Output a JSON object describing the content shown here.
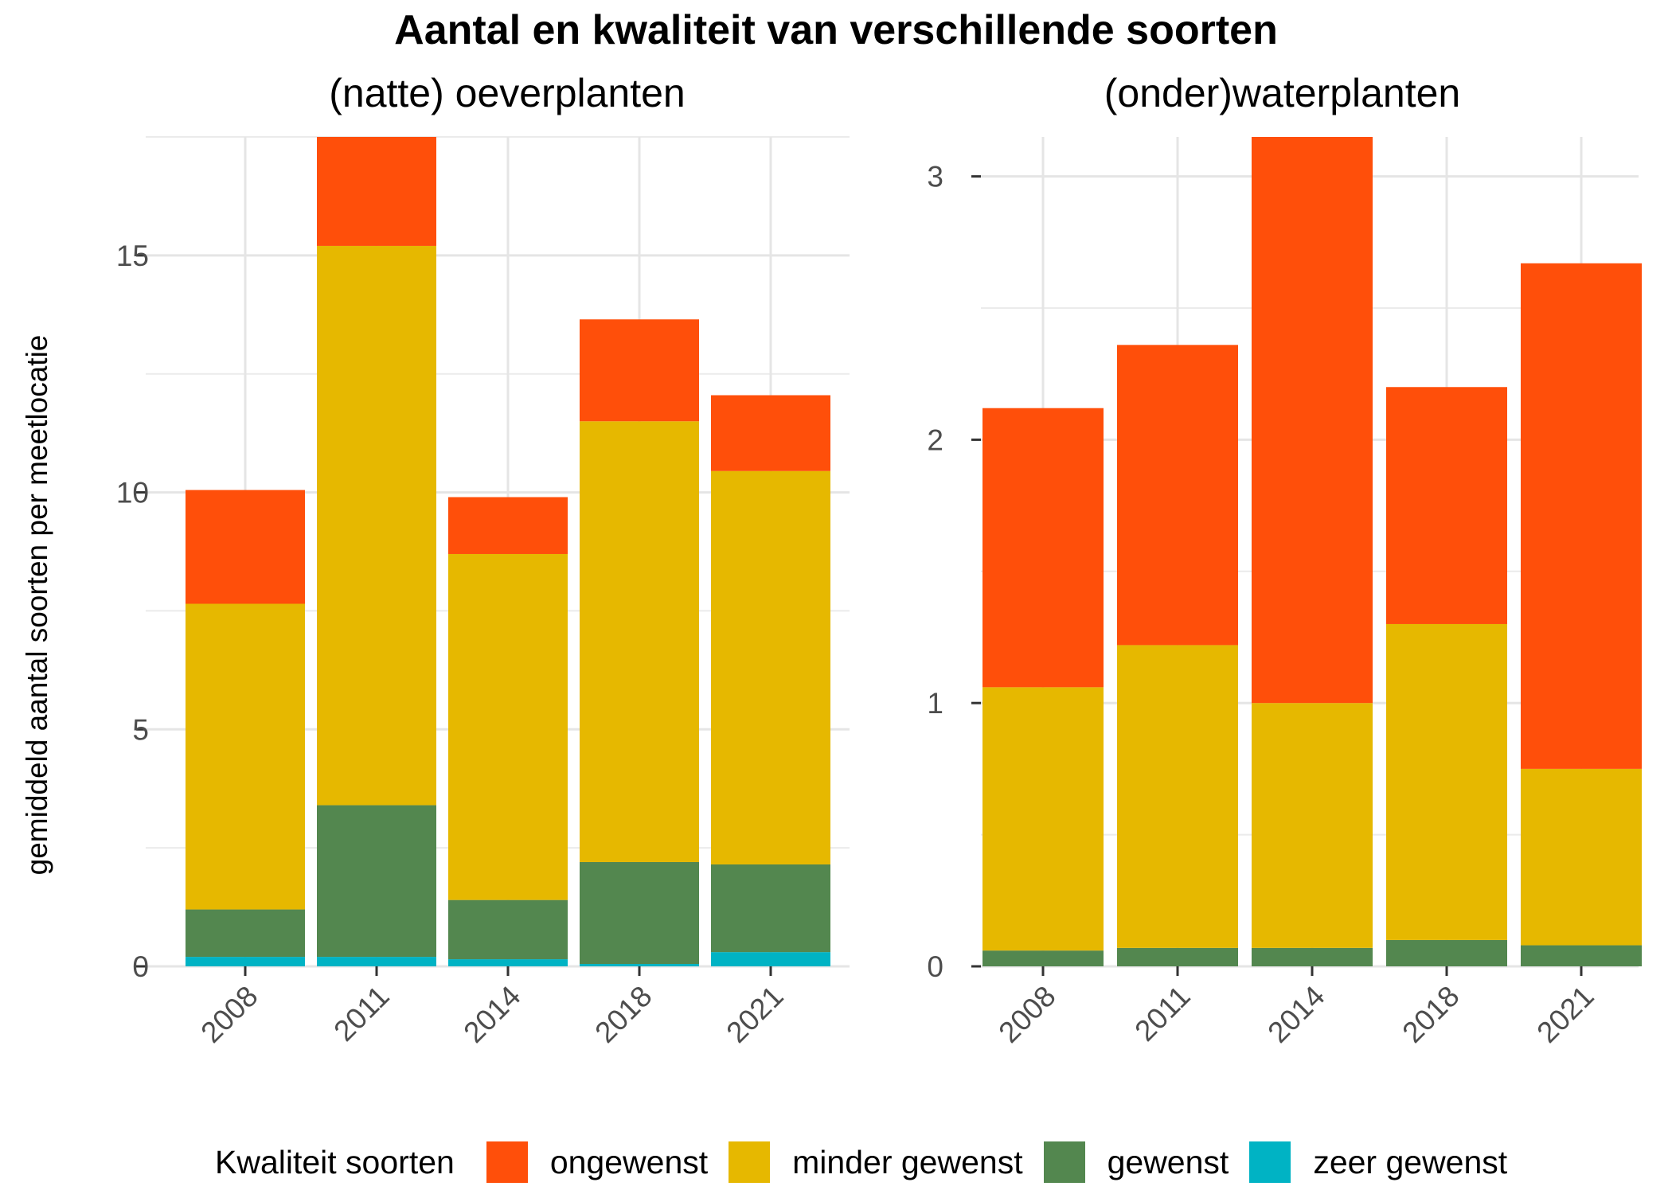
{
  "title": "Aantal en kwaliteit van verschillende soorten",
  "ylabel": "gemiddeld aantal soorten per meetlocatie",
  "legend": {
    "title": "Kwaliteit soorten",
    "items": [
      {
        "label": "ongewenst",
        "color": "#FF4F0A"
      },
      {
        "label": "minder gewenst",
        "color": "#E6B800"
      },
      {
        "label": "gewenst",
        "color": "#53874F"
      },
      {
        "label": "zeer gewenst",
        "color": "#00B3C4"
      }
    ]
  },
  "chart_data": [
    {
      "type": "bar",
      "stacked": true,
      "title": "(natte) oeverplanten",
      "categories": [
        "2008",
        "2011",
        "2014",
        "2018",
        "2021"
      ],
      "ylim": [
        0,
        17.5
      ],
      "yticks": [
        "0",
        "5",
        "10",
        "15"
      ],
      "grid": true,
      "series": [
        {
          "name": "zeer gewenst",
          "values": [
            0.2,
            0.2,
            0.15,
            0.05,
            0.3
          ]
        },
        {
          "name": "gewenst",
          "values": [
            1.0,
            3.2,
            1.25,
            2.15,
            1.85
          ]
        },
        {
          "name": "minder gewenst",
          "values": [
            6.45,
            11.8,
            7.3,
            9.3,
            8.3
          ]
        },
        {
          "name": "ongewenst",
          "values": [
            2.4,
            2.3,
            1.2,
            2.15,
            1.6
          ]
        }
      ]
    },
    {
      "type": "bar",
      "stacked": true,
      "title": "(onder)waterplanten",
      "categories": [
        "2008",
        "2011",
        "2014",
        "2018",
        "2021"
      ],
      "ylim": [
        0,
        3.15
      ],
      "yticks": [
        "0",
        "1",
        "2",
        "3"
      ],
      "grid": true,
      "series": [
        {
          "name": "zeer gewenst",
          "values": [
            0,
            0,
            0,
            0,
            0
          ]
        },
        {
          "name": "gewenst",
          "values": [
            0.06,
            0.07,
            0.07,
            0.1,
            0.08
          ]
        },
        {
          "name": "minder gewenst",
          "values": [
            1.0,
            1.15,
            0.93,
            1.2,
            0.67
          ]
        },
        {
          "name": "ongewenst",
          "values": [
            1.06,
            1.14,
            2.15,
            0.9,
            1.92
          ]
        }
      ]
    }
  ]
}
